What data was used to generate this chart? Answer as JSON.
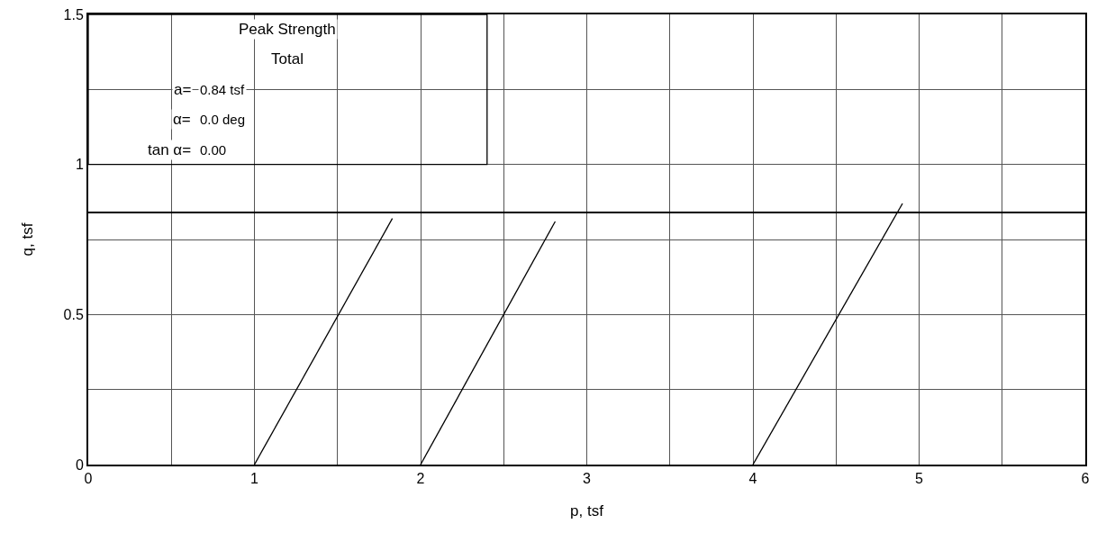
{
  "chart_data": {
    "type": "line",
    "xlabel": "p, tsf",
    "ylabel": "q, tsf",
    "xlim": [
      0,
      6
    ],
    "ylim": [
      0,
      1.5
    ],
    "xticks": [
      0,
      {
        "value": 0.5,
        "label": null
      },
      1,
      {
        "value": 1.5,
        "label": null
      },
      2,
      {
        "value": 2.5,
        "label": null
      },
      3,
      {
        "value": 3.5,
        "label": null
      },
      4,
      {
        "value": 4.5,
        "label": null
      },
      5,
      {
        "value": 5.5,
        "label": null
      },
      6
    ],
    "yticks": [
      0,
      {
        "value": 0.25,
        "label": null
      },
      0.5,
      {
        "value": 0.75,
        "label": null
      },
      1,
      {
        "value": 1.25,
        "label": null
      },
      1.5
    ],
    "grid": true,
    "marker": "none",
    "line_style": "solid",
    "series": [
      {
        "color": "#000000",
        "x": [
          1,
          1.83
        ],
        "values": [
          0,
          0.82
        ]
      },
      {
        "color": "#000000",
        "x": [
          2,
          2.81
        ],
        "values": [
          0,
          0.81
        ]
      },
      {
        "color": "#000000",
        "x": [
          4,
          4.9
        ],
        "values": [
          0,
          0.87
        ]
      }
    ],
    "ref_lines": [
      {
        "axis": "y",
        "value": 0.84,
        "color": "#000000"
      }
    ],
    "annotations": [
      "Peak Strength",
      "Total",
      "a= 0.84 tsf",
      "α= 0.0 deg",
      "tan α= 0.00"
    ]
  }
}
